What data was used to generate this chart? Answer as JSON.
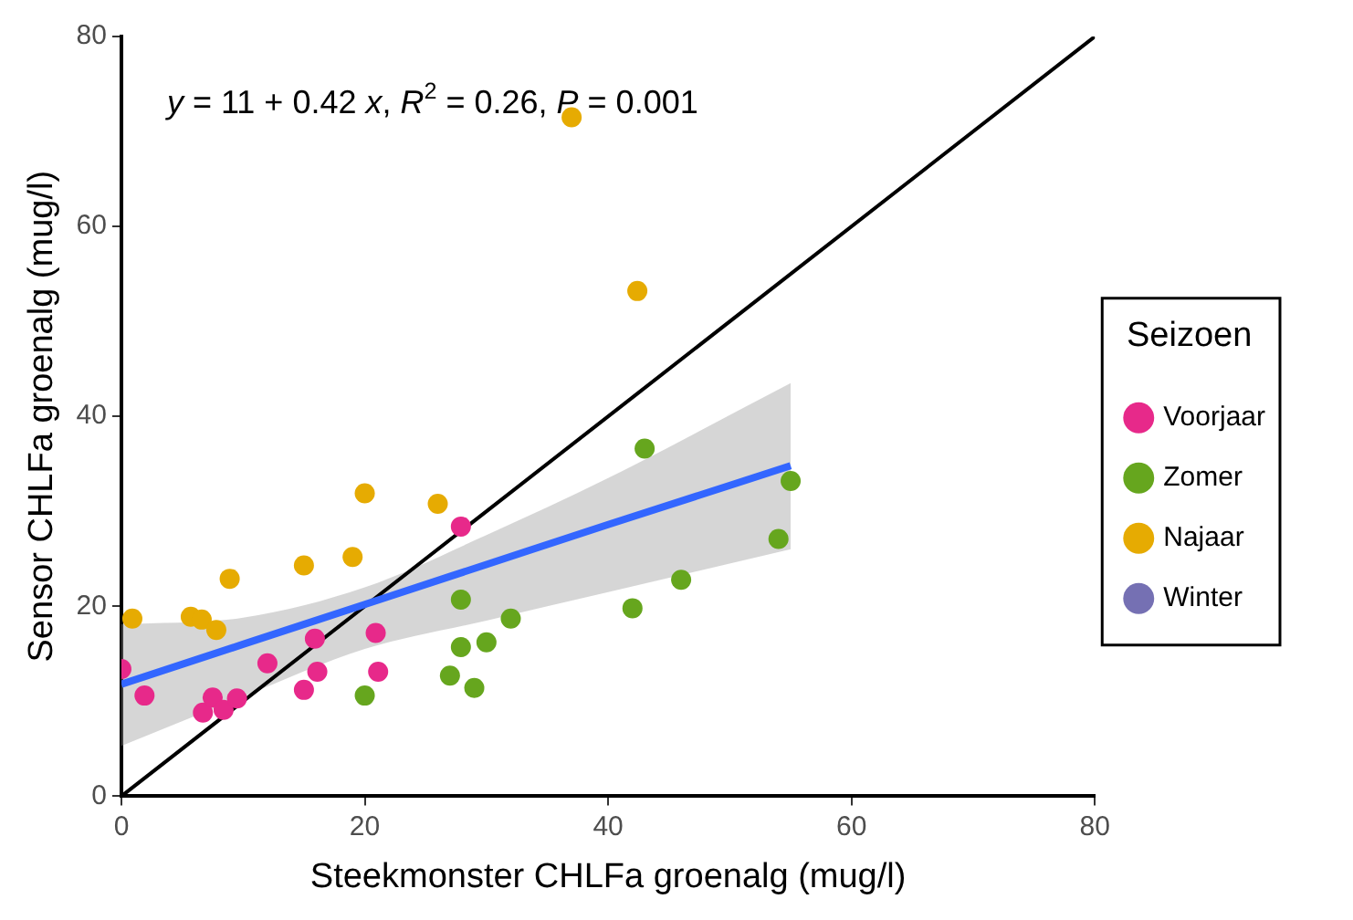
{
  "chart_data": {
    "type": "scatter",
    "xlabel": "Steekmonster CHLFa groenalg (mug/l)",
    "ylabel": "Sensor CHLFa groenalg (mug/l)",
    "legend_title": "Seizoen",
    "legend": "right",
    "grid": false,
    "marker": "circle",
    "xlim": [
      0,
      80
    ],
    "ylim": [
      0,
      80
    ],
    "xticks": [
      0,
      20,
      40,
      60,
      80
    ],
    "yticks": [
      0,
      20,
      40,
      60,
      80
    ],
    "annotations": [
      "y = 11 + 0.42 x, R$^{2}$ = 0.26, P = 0.001"
    ],
    "series": [
      {
        "name": "Voorjaar",
        "color": "#e7298a",
        "x": [
          0,
          1.9,
          6.7,
          7.5,
          8.4,
          9.5,
          12,
          15,
          15.9,
          16.1,
          20.9,
          21.1,
          27.9
        ],
        "values": [
          13.4,
          10.6,
          8.8,
          10.4,
          9.1,
          10.3,
          14,
          11.2,
          16.6,
          13.1,
          17.2,
          13.1,
          28.4
        ]
      },
      {
        "name": "Zomer",
        "color": "#66a61e",
        "x": [
          20,
          27,
          27.9,
          27.9,
          29,
          30,
          32,
          42,
          43,
          46,
          54,
          55
        ],
        "values": [
          10.6,
          12.7,
          20.7,
          15.7,
          11.4,
          16.2,
          18.7,
          19.8,
          36.6,
          22.8,
          27.1,
          33.2
        ]
      },
      {
        "name": "Najaar",
        "color": "#e6ab02",
        "x": [
          0.9,
          5.7,
          6.6,
          7.8,
          8.9,
          15,
          19,
          20,
          26,
          37,
          42.4
        ],
        "values": [
          18.7,
          18.9,
          18.6,
          17.5,
          22.9,
          24.3,
          25.2,
          31.9,
          30.8,
          71.5,
          53.2
        ]
      },
      {
        "name": "Winter",
        "color": "#7570b3"
      },
      {
        "color": "#3366ff",
        "type": "line",
        "marker": "none",
        "x": [
          0,
          10,
          20,
          30,
          40,
          55
        ],
        "values": [
          11.8,
          16,
          20.2,
          24.4,
          28.6,
          34.8
        ],
        "lower": [
          5.3,
          10.5,
          15.5,
          18.5,
          21.5,
          26
        ],
        "upper": [
          18.1,
          18.8,
          22,
          27.5,
          33.5,
          43.5
        ]
      },
      {
        "color": "#000000",
        "type": "line",
        "marker": "none",
        "x": [
          0,
          80
        ],
        "values": [
          0,
          80
        ]
      }
    ]
  }
}
